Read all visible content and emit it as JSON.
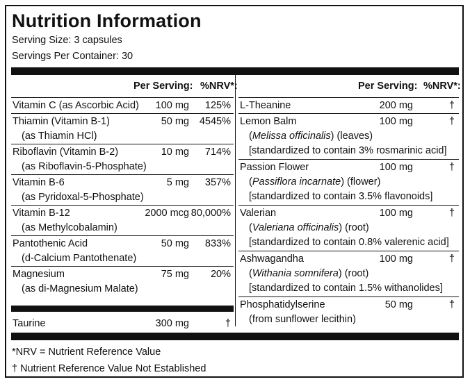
{
  "title": "Nutrition Information",
  "serving_size": "Serving Size: 3 capsules",
  "servings_per_container": "Servings Per Container: 30",
  "headers": {
    "per_serving": "Per Serving:",
    "nrv": "%NRV*:"
  },
  "left_rows": [
    {
      "name": "Vitamin C (as Ascorbic Acid)",
      "detail": "",
      "amount": "100 mg",
      "nrv": "125%"
    },
    {
      "name": "Thiamin (Vitamin B-1)",
      "detail": "(as Thiamin HCl)",
      "amount": "50 mg",
      "nrv": "4545%"
    },
    {
      "name": "Riboflavin (Vitamin B-2)",
      "detail": "(as Riboflavin-5-Phosphate)",
      "amount": "10 mg",
      "nrv": "714%"
    },
    {
      "name": "Vitamin B-6",
      "detail": "(as Pyridoxal-5-Phosphate)",
      "amount": "5 mg",
      "nrv": "357%"
    },
    {
      "name": "Vitamin B-12",
      "detail": "(as Methylcobalamin)",
      "amount": "2000 mcg",
      "nrv": "80,000%"
    },
    {
      "name": "Pantothenic Acid",
      "detail": "(d-Calcium Pantothenate)",
      "amount": "50 mg",
      "nrv": "833%"
    },
    {
      "name": "Magnesium",
      "detail": "(as di-Magnesium Malate)",
      "amount": "75 mg",
      "nrv": "20%"
    }
  ],
  "taurine": {
    "name": "Taurine",
    "amount": "300 mg",
    "nrv": "†"
  },
  "right_rows": [
    {
      "name": "L-Theanine",
      "amount": "200 mg",
      "nrv": "†"
    },
    {
      "name": "Lemon Balm",
      "latin": "Melissa officinalis",
      "part": " (leaves)",
      "std": "[standardized to contain 3% rosmarinic acid]",
      "amount": "100 mg",
      "nrv": "†"
    },
    {
      "name": "Passion Flower",
      "latin": "Passiflora incarnate",
      "part": " (flower)",
      "std": "[standardized to contain 3.5% flavonoids]",
      "amount": "100 mg",
      "nrv": "†"
    },
    {
      "name": "Valerian",
      "latin": "Valeriana officinalis",
      "part": " (root)",
      "std": "[standardized to contain 0.8% valerenic acid]",
      "amount": "100 mg",
      "nrv": "†"
    },
    {
      "name": "Ashwagandha",
      "latin": "Withania somnifera",
      "part": " (root)",
      "std": "[standardized to contain 1.5% withanolides]",
      "amount": "100 mg",
      "nrv": "†"
    },
    {
      "name": "Phosphatidylserine",
      "detail": "(from sunflower lecithin)",
      "amount": "50 mg",
      "nrv": "†"
    }
  ],
  "footnotes": {
    "nrv": "*NRV = Nutrient Reference Value",
    "dagger": "† Nutrient Reference Value Not Established"
  }
}
